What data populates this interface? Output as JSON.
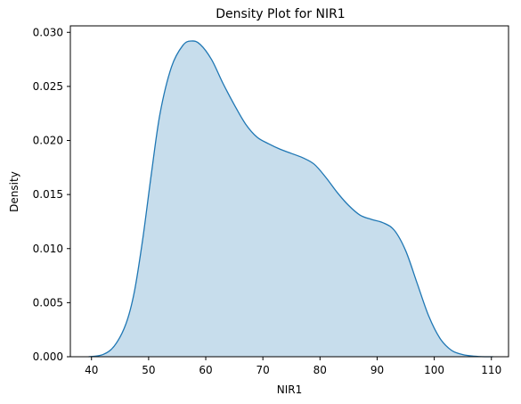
{
  "chart_data": {
    "type": "area",
    "title": "Density Plot for NIR1",
    "xlabel": "NIR1",
    "ylabel": "Density",
    "xlim": [
      36.3,
      113.0
    ],
    "ylim": [
      0,
      0.0306
    ],
    "xticks": [
      40,
      50,
      60,
      70,
      80,
      90,
      100,
      110
    ],
    "xtick_labels": [
      "40",
      "50",
      "60",
      "70",
      "80",
      "90",
      "100",
      "110"
    ],
    "yticks": [
      0.0,
      0.005,
      0.01,
      0.015,
      0.02,
      0.025,
      0.03
    ],
    "ytick_labels": [
      "0.000",
      "0.005",
      "0.010",
      "0.015",
      "0.020",
      "0.025",
      "0.030"
    ],
    "grid": false,
    "colors": {
      "line": "#1f77b4",
      "fill": "#1f77b4",
      "fill_opacity": 0.25
    },
    "series": [
      {
        "x": [
          39.5,
          42,
          44,
          46,
          47.5,
          49,
          50.5,
          52,
          54,
          56,
          57.5,
          59,
          61,
          63,
          65,
          67,
          69,
          71,
          73,
          75,
          77,
          79,
          81,
          83,
          85,
          87,
          89,
          91,
          93,
          95,
          97,
          99,
          101,
          103,
          105,
          107,
          109,
          110.3
        ],
        "y": [
          0.0,
          0.0002,
          0.001,
          0.003,
          0.006,
          0.011,
          0.017,
          0.0225,
          0.0268,
          0.0288,
          0.0292,
          0.0289,
          0.0275,
          0.0253,
          0.0233,
          0.0215,
          0.0203,
          0.0197,
          0.0192,
          0.0188,
          0.0184,
          0.0178,
          0.0166,
          0.0152,
          0.014,
          0.0131,
          0.0127,
          0.0124,
          0.0117,
          0.0098,
          0.0068,
          0.0038,
          0.0017,
          0.0006,
          0.0002,
          5e-05,
          0.0,
          0.0
        ]
      }
    ]
  }
}
